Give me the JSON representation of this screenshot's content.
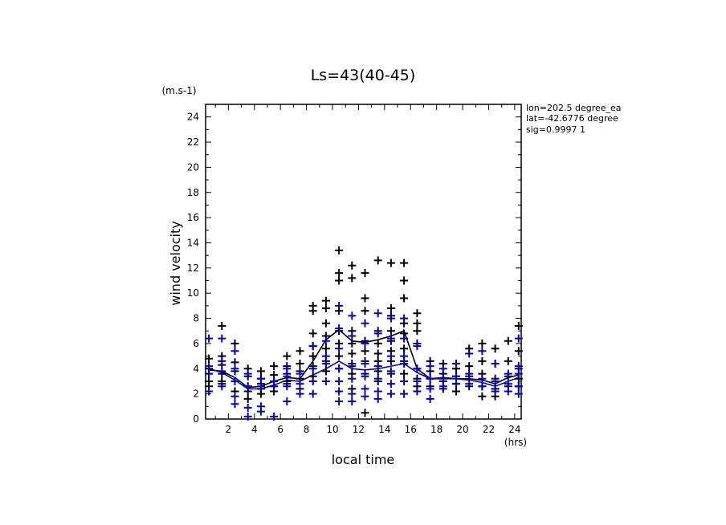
{
  "chart_data": {
    "type": "scatter",
    "title": "Ls=43(40-45)",
    "xlabel": "local time",
    "ylabel": "wind velocity",
    "x_unit": "(hrs)",
    "y_unit": "(m.s-1)",
    "xlim": [
      0.25,
      24.5
    ],
    "ylim": [
      0,
      25
    ],
    "xticks": [
      2,
      4,
      6,
      8,
      10,
      12,
      14,
      16,
      18,
      20,
      22,
      24
    ],
    "yticks": [
      0,
      2,
      4,
      6,
      8,
      10,
      12,
      14,
      16,
      18,
      20,
      22,
      24
    ],
    "info": [
      "lon=202.5 degree_ea",
      "lat=-42.6776 degree",
      "sig=0.9997 1"
    ],
    "grid": false,
    "series": [
      {
        "color": "#000000",
        "marker": "plus",
        "points": [
          [
            0.5,
            4.8
          ],
          [
            0.5,
            4.0
          ],
          [
            0.5,
            3.6
          ],
          [
            0.5,
            3.0
          ],
          [
            0.5,
            2.6
          ],
          [
            1.5,
            7.4
          ],
          [
            1.5,
            5.0
          ],
          [
            1.5,
            4.3
          ],
          [
            1.5,
            3.6
          ],
          [
            1.5,
            3.0
          ],
          [
            1.5,
            2.8
          ],
          [
            2.5,
            6.0
          ],
          [
            2.5,
            4.5
          ],
          [
            2.5,
            3.8
          ],
          [
            2.5,
            3.0
          ],
          [
            2.5,
            2.2
          ],
          [
            3.5,
            4.0
          ],
          [
            3.5,
            3.4
          ],
          [
            3.5,
            2.6
          ],
          [
            3.5,
            2.2
          ],
          [
            3.5,
            1.6
          ],
          [
            4.5,
            3.8
          ],
          [
            4.5,
            3.2
          ],
          [
            4.5,
            2.8
          ],
          [
            4.5,
            2.4
          ],
          [
            4.5,
            2.0
          ],
          [
            5.5,
            4.2
          ],
          [
            5.5,
            3.5
          ],
          [
            5.5,
            3.0
          ],
          [
            5.5,
            2.6
          ],
          [
            5.5,
            2.2
          ],
          [
            6.5,
            5.0
          ],
          [
            6.5,
            4.2
          ],
          [
            6.5,
            3.6
          ],
          [
            6.5,
            3.0
          ],
          [
            6.5,
            2.8
          ],
          [
            7.5,
            5.4
          ],
          [
            7.5,
            4.4
          ],
          [
            7.5,
            3.8
          ],
          [
            7.5,
            3.2
          ],
          [
            7.5,
            2.4
          ],
          [
            8.5,
            9.0
          ],
          [
            8.5,
            8.6
          ],
          [
            8.5,
            6.8
          ],
          [
            8.5,
            5.8
          ],
          [
            8.5,
            5.0
          ],
          [
            8.5,
            4.2
          ],
          [
            8.5,
            3.4
          ],
          [
            9.5,
            9.4
          ],
          [
            9.5,
            8.8
          ],
          [
            9.5,
            7.6
          ],
          [
            9.5,
            6.6
          ],
          [
            9.5,
            5.6
          ],
          [
            9.5,
            4.6
          ],
          [
            9.5,
            3.8
          ],
          [
            10.5,
            13.4
          ],
          [
            10.5,
            11.6
          ],
          [
            10.5,
            11.0
          ],
          [
            10.5,
            8.6
          ],
          [
            10.5,
            7.0
          ],
          [
            10.5,
            6.0
          ],
          [
            10.5,
            5.0
          ],
          [
            10.5,
            4.0
          ],
          [
            11.5,
            12.2
          ],
          [
            11.5,
            11.2
          ],
          [
            11.5,
            7.0
          ],
          [
            11.5,
            6.0
          ],
          [
            11.5,
            5.2
          ],
          [
            11.5,
            4.4
          ],
          [
            11.5,
            3.6
          ],
          [
            11.5,
            2.4
          ],
          [
            12.5,
            11.6
          ],
          [
            12.5,
            9.6
          ],
          [
            12.5,
            8.6
          ],
          [
            12.5,
            6.2
          ],
          [
            12.5,
            5.4
          ],
          [
            12.5,
            4.6
          ],
          [
            12.5,
            3.6
          ],
          [
            12.5,
            0.5
          ],
          [
            13.5,
            12.6
          ],
          [
            13.5,
            7.0
          ],
          [
            13.5,
            6.0
          ],
          [
            13.5,
            5.2
          ],
          [
            13.5,
            4.6
          ],
          [
            13.5,
            3.8
          ],
          [
            13.5,
            3.0
          ],
          [
            14.5,
            12.4
          ],
          [
            14.5,
            8.8
          ],
          [
            14.5,
            8.2
          ],
          [
            14.5,
            7.0
          ],
          [
            14.5,
            6.2
          ],
          [
            14.5,
            5.4
          ],
          [
            14.5,
            4.6
          ],
          [
            14.5,
            3.6
          ],
          [
            15.5,
            12.4
          ],
          [
            15.5,
            11.0
          ],
          [
            15.5,
            9.6
          ],
          [
            15.5,
            7.6
          ],
          [
            15.5,
            6.8
          ],
          [
            15.5,
            5.6
          ],
          [
            15.5,
            4.6
          ],
          [
            15.5,
            3.6
          ],
          [
            16.5,
            8.4
          ],
          [
            16.5,
            7.6
          ],
          [
            16.5,
            7.0
          ],
          [
            16.5,
            6.0
          ],
          [
            16.5,
            4.0
          ],
          [
            16.5,
            3.2
          ],
          [
            16.5,
            2.6
          ],
          [
            17.5,
            4.6
          ],
          [
            17.5,
            3.8
          ],
          [
            17.5,
            3.2
          ],
          [
            17.5,
            2.6
          ],
          [
            18.5,
            4.4
          ],
          [
            18.5,
            3.6
          ],
          [
            18.5,
            3.0
          ],
          [
            18.5,
            2.4
          ],
          [
            19.5,
            4.0
          ],
          [
            19.5,
            3.4
          ],
          [
            19.5,
            2.8
          ],
          [
            19.5,
            2.2
          ],
          [
            20.5,
            5.6
          ],
          [
            20.5,
            4.2
          ],
          [
            20.5,
            3.4
          ],
          [
            20.5,
            2.6
          ],
          [
            21.5,
            6.0
          ],
          [
            21.5,
            4.6
          ],
          [
            21.5,
            3.6
          ],
          [
            21.5,
            2.6
          ],
          [
            21.5,
            1.8
          ],
          [
            22.5,
            5.6
          ],
          [
            22.5,
            4.4
          ],
          [
            22.5,
            3.2
          ],
          [
            22.5,
            2.4
          ],
          [
            22.5,
            1.8
          ],
          [
            23.5,
            6.2
          ],
          [
            23.5,
            4.6
          ],
          [
            23.5,
            3.4
          ],
          [
            23.5,
            2.6
          ],
          [
            24.3,
            7.4
          ],
          [
            24.3,
            5.4
          ],
          [
            24.3,
            4.0
          ],
          [
            24.3,
            3.2
          ],
          [
            24.3,
            2.6
          ]
        ]
      },
      {
        "color": "#0000cc",
        "marker": "plus",
        "points": [
          [
            0.5,
            6.4
          ],
          [
            0.5,
            4.2
          ],
          [
            0.5,
            3.6
          ],
          [
            0.5,
            2.2
          ],
          [
            1.5,
            6.4
          ],
          [
            1.5,
            4.6
          ],
          [
            1.5,
            3.8
          ],
          [
            1.5,
            2.6
          ],
          [
            2.5,
            5.4
          ],
          [
            2.5,
            4.0
          ],
          [
            2.5,
            3.0
          ],
          [
            2.5,
            1.8
          ],
          [
            2.5,
            1.2
          ],
          [
            3.5,
            3.6
          ],
          [
            3.5,
            2.6
          ],
          [
            3.5,
            0.9
          ],
          [
            3.5,
            0.2
          ],
          [
            4.5,
            3.2
          ],
          [
            4.5,
            2.6
          ],
          [
            4.5,
            1.0
          ],
          [
            4.5,
            0.6
          ],
          [
            5.5,
            3.0
          ],
          [
            5.5,
            2.6
          ],
          [
            5.5,
            0.2
          ],
          [
            6.5,
            4.0
          ],
          [
            6.5,
            3.4
          ],
          [
            6.5,
            2.6
          ],
          [
            6.5,
            1.4
          ],
          [
            7.5,
            3.6
          ],
          [
            7.5,
            2.8
          ],
          [
            7.5,
            2.0
          ],
          [
            8.5,
            5.8
          ],
          [
            8.5,
            4.0
          ],
          [
            8.5,
            3.0
          ],
          [
            8.5,
            2.0
          ],
          [
            9.5,
            6.2
          ],
          [
            9.5,
            5.0
          ],
          [
            9.5,
            4.4
          ],
          [
            9.5,
            3.0
          ],
          [
            10.5,
            9.0
          ],
          [
            10.5,
            7.2
          ],
          [
            10.5,
            5.6
          ],
          [
            10.5,
            4.0
          ],
          [
            10.5,
            3.0
          ],
          [
            10.5,
            2.2
          ],
          [
            10.5,
            1.4
          ],
          [
            11.5,
            8.2
          ],
          [
            11.5,
            6.6
          ],
          [
            11.5,
            4.2
          ],
          [
            11.5,
            3.2
          ],
          [
            11.5,
            2.0
          ],
          [
            11.5,
            1.4
          ],
          [
            12.5,
            7.6
          ],
          [
            12.5,
            6.0
          ],
          [
            12.5,
            4.4
          ],
          [
            12.5,
            3.4
          ],
          [
            12.5,
            2.4
          ],
          [
            12.5,
            1.8
          ],
          [
            13.5,
            8.4
          ],
          [
            13.5,
            6.8
          ],
          [
            13.5,
            4.2
          ],
          [
            13.5,
            3.2
          ],
          [
            13.5,
            2.2
          ],
          [
            13.5,
            1.6
          ],
          [
            14.5,
            8.0
          ],
          [
            14.5,
            6.4
          ],
          [
            14.5,
            5.0
          ],
          [
            14.5,
            3.8
          ],
          [
            14.5,
            2.8
          ],
          [
            14.5,
            2.0
          ],
          [
            15.5,
            8.0
          ],
          [
            15.5,
            6.4
          ],
          [
            15.5,
            5.0
          ],
          [
            15.5,
            4.4
          ],
          [
            15.5,
            3.0
          ],
          [
            15.5,
            2.0
          ],
          [
            16.5,
            5.8
          ],
          [
            16.5,
            4.0
          ],
          [
            16.5,
            3.0
          ],
          [
            16.5,
            2.2
          ],
          [
            17.5,
            4.2
          ],
          [
            17.5,
            3.2
          ],
          [
            17.5,
            2.4
          ],
          [
            17.5,
            1.6
          ],
          [
            18.5,
            4.0
          ],
          [
            18.5,
            3.2
          ],
          [
            18.5,
            2.6
          ],
          [
            19.5,
            4.4
          ],
          [
            19.5,
            3.4
          ],
          [
            19.5,
            2.8
          ],
          [
            20.5,
            5.2
          ],
          [
            20.5,
            3.6
          ],
          [
            20.5,
            2.8
          ],
          [
            21.5,
            5.4
          ],
          [
            21.5,
            3.2
          ],
          [
            21.5,
            2.6
          ],
          [
            22.5,
            4.4
          ],
          [
            22.5,
            3.0
          ],
          [
            22.5,
            2.2
          ],
          [
            23.5,
            3.6
          ],
          [
            23.5,
            2.8
          ],
          [
            23.5,
            2.2
          ],
          [
            24.3,
            6.4
          ],
          [
            24.3,
            4.2
          ],
          [
            24.3,
            3.6
          ],
          [
            24.3,
            2.6
          ],
          [
            24.3,
            2.0
          ]
        ]
      }
    ],
    "mean_lines": [
      {
        "color": "#000000",
        "x": [
          0.5,
          1.5,
          2.5,
          3.5,
          4.5,
          5.5,
          6.5,
          7.5,
          8.5,
          9.5,
          10.5,
          11.5,
          12.5,
          13.5,
          14.5,
          15.5,
          16.5,
          17.5,
          18.5,
          19.5,
          20.5,
          21.5,
          22.5,
          23.5,
          24.3
        ],
        "y": [
          3.9,
          3.8,
          3.3,
          2.5,
          2.6,
          3.0,
          3.3,
          3.2,
          4.6,
          6.3,
          7.1,
          6.2,
          6.1,
          6.3,
          6.6,
          7.0,
          4.0,
          3.2,
          3.3,
          3.2,
          3.2,
          3.1,
          2.8,
          3.3,
          3.5
        ]
      },
      {
        "color": "#0000cc",
        "x": [
          0.5,
          1.5,
          2.5,
          3.5,
          4.5,
          5.5,
          6.5,
          7.5,
          8.5,
          9.5,
          10.5,
          11.5,
          12.5,
          13.5,
          14.5,
          15.5,
          16.5,
          17.5,
          18.5,
          19.5,
          20.5,
          21.5,
          22.5,
          23.5,
          24.3
        ],
        "y": [
          4.0,
          3.7,
          3.1,
          2.4,
          2.4,
          2.7,
          3.1,
          3.0,
          3.5,
          4.0,
          4.6,
          4.0,
          3.9,
          4.0,
          4.2,
          4.4,
          3.7,
          3.2,
          3.2,
          3.2,
          3.1,
          2.9,
          2.6,
          3.0,
          3.3
        ]
      }
    ]
  }
}
